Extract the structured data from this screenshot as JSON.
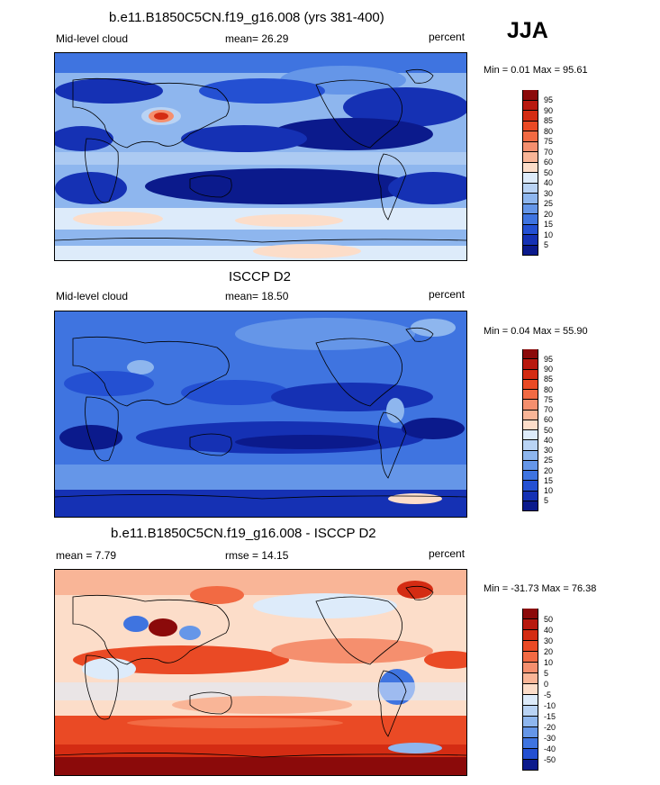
{
  "season": "JJA",
  "panels": [
    {
      "title": "b.e11.B1850C5CN.f19_g16.008 (yrs 381-400)",
      "left_label": "Mid-level cloud",
      "center_label": "mean=  26.29",
      "right_label": "percent",
      "minmax": "Min =   0.01 Max =  95.61",
      "colorbar": {
        "labels": [
          "95",
          "90",
          "85",
          "80",
          "75",
          "70",
          "60",
          "50",
          "40",
          "30",
          "25",
          "20",
          "15",
          "10",
          "5"
        ],
        "colors": [
          "#8b0a0a",
          "#b8190f",
          "#d42c13",
          "#ea4a25",
          "#f26a43",
          "#f58f6e",
          "#f9b597",
          "#fcddc9",
          "#ddebfa",
          "#b9d3f4",
          "#8eb6ee",
          "#6596e8",
          "#3f74e0",
          "#2450d2",
          "#1531b4",
          "#0b1a8c"
        ]
      }
    },
    {
      "title": "ISCCP D2",
      "left_label": "Mid-level cloud",
      "center_label": "mean=  18.50",
      "right_label": "percent",
      "minmax": "Min =   0.04 Max =  55.90",
      "colorbar": {
        "labels": [
          "95",
          "90",
          "85",
          "80",
          "75",
          "70",
          "60",
          "50",
          "40",
          "30",
          "25",
          "20",
          "15",
          "10",
          "5"
        ],
        "colors": [
          "#8b0a0a",
          "#b8190f",
          "#d42c13",
          "#ea4a25",
          "#f26a43",
          "#f58f6e",
          "#f9b597",
          "#fcddc9",
          "#ddebfa",
          "#b9d3f4",
          "#8eb6ee",
          "#6596e8",
          "#3f74e0",
          "#2450d2",
          "#1531b4",
          "#0b1a8c"
        ]
      }
    },
    {
      "title": "b.e11.B1850C5CN.f19_g16.008 - ISCCP D2",
      "left_label": "mean =   7.79",
      "center_label": "rmse =  14.15",
      "right_label": "percent",
      "minmax": "Min = -31.73 Max =  76.38",
      "colorbar": {
        "labels": [
          "50",
          "40",
          "30",
          "20",
          "10",
          "5",
          "0",
          "-5",
          "-10",
          "-15",
          "-20",
          "-30",
          "-40",
          "-50"
        ],
        "colors": [
          "#8b0a0a",
          "#b8190f",
          "#d42c13",
          "#ea4a25",
          "#f26a43",
          "#f58f6e",
          "#f9b597",
          "#fcddc9",
          "#ddebfa",
          "#b9d3f4",
          "#8eb6ee",
          "#6596e8",
          "#3f74e0",
          "#2450d2",
          "#0b1a8c"
        ]
      }
    }
  ]
}
